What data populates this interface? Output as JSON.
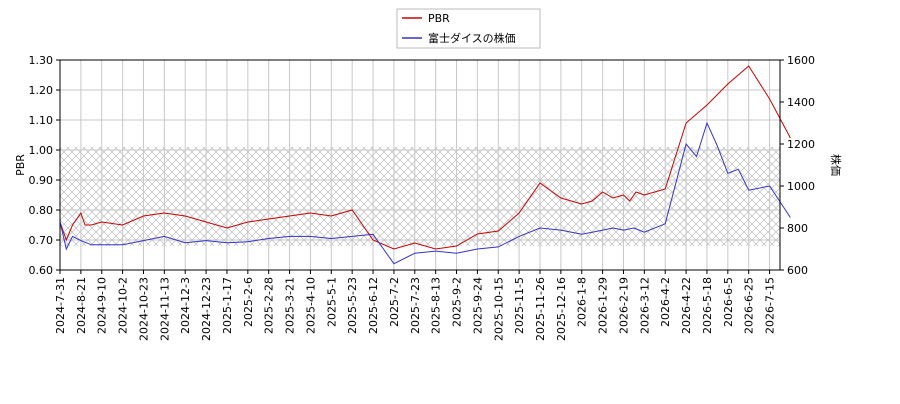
{
  "chart_data": {
    "type": "line",
    "legend": {
      "placement": "top-center",
      "entries": [
        {
          "label": "PBR",
          "color": "#cc0000"
        },
        {
          "label": "富士ダイスの株価",
          "color": "#3333cc"
        }
      ]
    },
    "x_ticks": [
      "2024-7-31",
      "2024-8-21",
      "2024-9-10",
      "2024-10-2",
      "2024-10-23",
      "2024-11-13",
      "2024-12-3",
      "2024-12-23",
      "2025-1-17",
      "2025-2-6",
      "2025-2-28",
      "2025-3-21",
      "2025-4-10",
      "2025-5-1",
      "2025-5-23",
      "2025-6-12",
      "2025-7-2",
      "2025-7-23",
      "2025-8-13",
      "2025-9-2",
      "2025-9-24",
      "2025-10-15",
      "2025-11-5",
      "2025-11-26",
      "2025-12-16",
      "2026-1-8",
      "2026-1-29",
      "2026-2-19",
      "2026-3-12",
      "2026-4-2",
      "2026-4-22",
      "2026-5-18",
      "2026-6-5",
      "2026-6-25",
      "2026-7-15"
    ],
    "y_left": {
      "label": "PBR",
      "lim": [
        0.6,
        1.3
      ],
      "ticks": [
        "0.60",
        "0.70",
        "0.80",
        "0.90",
        "1.00",
        "1.10",
        "1.20",
        "1.30"
      ]
    },
    "y_right": {
      "label": "株価",
      "lim": [
        600,
        1600
      ],
      "ticks": [
        "600",
        "800",
        "1000",
        "1200",
        "1400",
        "1600"
      ]
    },
    "hatched_band": {
      "axis": "left",
      "from": 0.68,
      "to": 1.01
    },
    "grid": true,
    "series": [
      {
        "name": "PBR",
        "axis": "left",
        "color": "#cc0000",
        "x": [
          0,
          0.3,
          0.6,
          1,
          1.2,
          1.5,
          2,
          3,
          4,
          5,
          6,
          7,
          8,
          9,
          10,
          11,
          12,
          13,
          14,
          15,
          16,
          17,
          18,
          19,
          20,
          21,
          22,
          23,
          24,
          25,
          25.5,
          26,
          26.5,
          27,
          27.3,
          27.6,
          28,
          29,
          30,
          31,
          32,
          33,
          34,
          35
        ],
        "values": [
          0.76,
          0.7,
          0.75,
          0.79,
          0.75,
          0.75,
          0.76,
          0.75,
          0.78,
          0.79,
          0.78,
          0.76,
          0.74,
          0.76,
          0.77,
          0.78,
          0.79,
          0.78,
          0.8,
          0.7,
          0.67,
          0.69,
          0.67,
          0.68,
          0.72,
          0.73,
          0.79,
          0.89,
          0.84,
          0.82,
          0.83,
          0.86,
          0.84,
          0.85,
          0.83,
          0.86,
          0.85,
          0.87,
          1.09,
          1.15,
          1.22,
          1.28,
          1.17,
          1.04
        ]
      },
      {
        "name": "富士ダイスの株価",
        "axis": "right",
        "color": "#3333cc",
        "x": [
          0,
          0.3,
          0.6,
          1,
          1.5,
          2,
          3,
          4,
          5,
          6,
          7,
          8,
          9,
          10,
          11,
          12,
          13,
          14,
          15,
          16,
          17,
          18,
          19,
          20,
          21,
          22,
          23,
          24,
          25,
          25.5,
          26,
          26.5,
          27,
          27.5,
          28,
          29,
          30,
          30.5,
          31,
          31.5,
          32,
          32.5,
          33,
          34,
          35
        ],
        "values": [
          830,
          700,
          760,
          740,
          720,
          720,
          720,
          740,
          760,
          730,
          740,
          730,
          735,
          750,
          760,
          760,
          750,
          760,
          770,
          630,
          680,
          690,
          680,
          700,
          710,
          760,
          800,
          790,
          770,
          780,
          790,
          800,
          790,
          800,
          780,
          820,
          1200,
          1140,
          1300,
          1190,
          1060,
          1080,
          980,
          1000,
          850
        ]
      }
    ]
  }
}
